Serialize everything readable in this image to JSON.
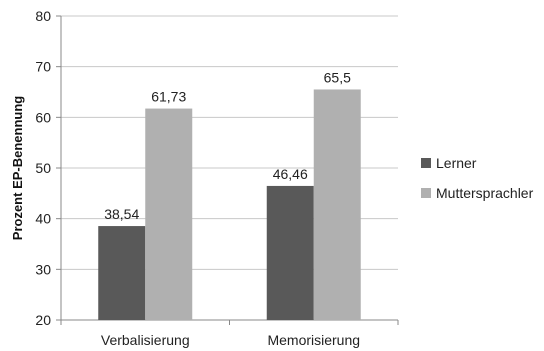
{
  "chart_data": {
    "type": "bar",
    "title": "",
    "xlabel": "",
    "ylabel": "Prozent EP-Benennung",
    "categories": [
      "Verbalisierung",
      "Memorisierung"
    ],
    "series": [
      {
        "name": "Lerner",
        "values": [
          38.54,
          46.46
        ],
        "labels": [
          "38,54",
          "46,46"
        ],
        "color": "#595959"
      },
      {
        "name": "Muttersprachler",
        "values": [
          61.73,
          65.5
        ],
        "labels": [
          "61,73",
          "65,5"
        ],
        "color": "#b0b0b0"
      }
    ],
    "ylim": [
      20,
      80
    ],
    "yticks": [
      20,
      30,
      40,
      50,
      60,
      70,
      80
    ],
    "grid": true,
    "legend_position": "right"
  },
  "colors": {
    "gridline": "#c8c8c8",
    "axis": "#888888",
    "text": "#222222"
  }
}
